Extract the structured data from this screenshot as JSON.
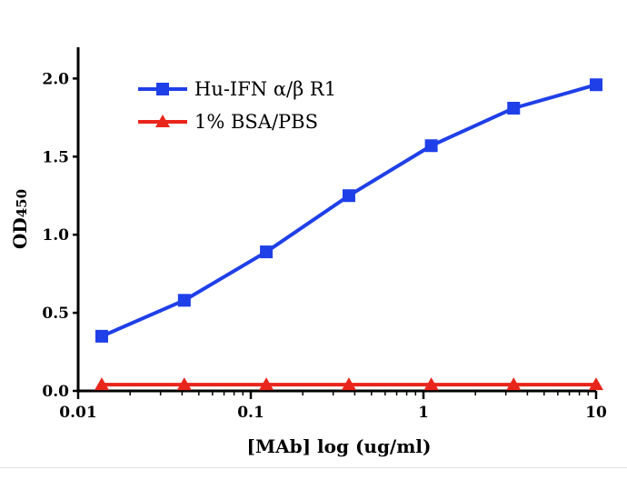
{
  "chart_data": {
    "type": "line",
    "title": "",
    "xlabel": "[MAb] log (ug/ml)",
    "ylabel_main": "OD",
    "ylabel_sub": "450",
    "x_scale": "log",
    "xlim": [
      0.01,
      10
    ],
    "ylim": [
      0,
      2.2
    ],
    "x_ticks": [
      0.01,
      0.1,
      1,
      10
    ],
    "x_tick_labels": [
      "0.01",
      "0.1",
      "1",
      "10"
    ],
    "y_ticks": [
      0,
      0.5,
      1,
      1.5,
      2
    ],
    "y_tick_labels": [
      "0.0",
      "0.5",
      "1.0",
      "1.5",
      "2.0"
    ],
    "grid": false,
    "legend_position": "top-left",
    "series": [
      {
        "name": "Hu-IFN α/β R1",
        "color": "#1f3fe8",
        "marker": "square",
        "x": [
          0.0137,
          0.0412,
          0.123,
          0.37,
          1.11,
          3.33,
          10
        ],
        "y": [
          0.35,
          0.58,
          0.89,
          1.25,
          1.57,
          1.81,
          1.96
        ]
      },
      {
        "name": "1% BSA/PBS",
        "color": "#e8261c",
        "marker": "triangle",
        "x": [
          0.0137,
          0.0412,
          0.123,
          0.37,
          1.11,
          3.33,
          10
        ],
        "y": [
          0.04,
          0.04,
          0.04,
          0.04,
          0.04,
          0.04,
          0.04
        ]
      }
    ]
  }
}
